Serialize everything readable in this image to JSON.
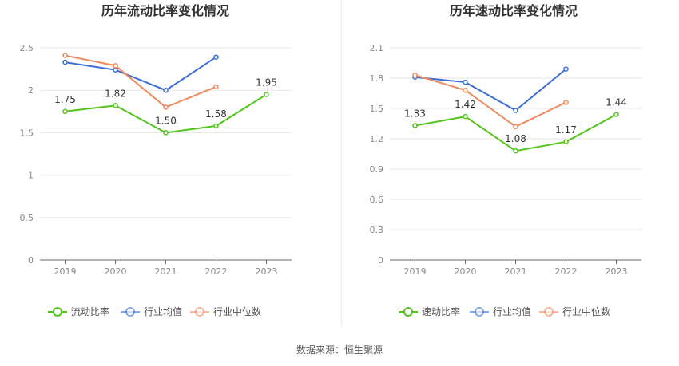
{
  "chart_data": [
    {
      "type": "line",
      "title": "历年流动比率变化情况",
      "categories": [
        "2019",
        "2020",
        "2021",
        "2022",
        "2023"
      ],
      "ylim": [
        0,
        2.5
      ],
      "yticks": [
        "0",
        "0.5",
        "1",
        "1.5",
        "2",
        "2.5"
      ],
      "grid": true,
      "legend_position": "bottom",
      "series": [
        {
          "name": "流动比率",
          "color": "#52c41a",
          "values": [
            1.75,
            1.82,
            1.5,
            1.58,
            1.95
          ],
          "labels": [
            "1.75",
            "1.82",
            "1.50",
            "1.58",
            "1.95"
          ]
        },
        {
          "name": "行业均值",
          "color": "#3b6fd6",
          "values": [
            2.33,
            2.24,
            2.0,
            2.39,
            null
          ]
        },
        {
          "name": "行业中位数",
          "color": "#f08a5d",
          "values": [
            2.41,
            2.29,
            1.8,
            2.04,
            null
          ]
        }
      ]
    },
    {
      "type": "line",
      "title": "历年速动比率变化情况",
      "categories": [
        "2019",
        "2020",
        "2021",
        "2022",
        "2023"
      ],
      "ylim": [
        0,
        2.1
      ],
      "yticks": [
        "0",
        "0.3",
        "0.6",
        "0.9",
        "1.2",
        "1.5",
        "1.8",
        "2.1"
      ],
      "grid": true,
      "legend_position": "bottom",
      "series": [
        {
          "name": "速动比率",
          "color": "#52c41a",
          "values": [
            1.33,
            1.42,
            1.08,
            1.17,
            1.44
          ],
          "labels": [
            "1.33",
            "1.42",
            "1.08",
            "1.17",
            "1.44"
          ]
        },
        {
          "name": "行业均值",
          "color": "#3b6fd6",
          "values": [
            1.81,
            1.76,
            1.48,
            1.89,
            null
          ]
        },
        {
          "name": "行业中位数",
          "color": "#f08a5d",
          "values": [
            1.83,
            1.68,
            1.32,
            1.56,
            null
          ]
        }
      ]
    }
  ],
  "footer": {
    "source": "数据来源：恒生聚源"
  }
}
